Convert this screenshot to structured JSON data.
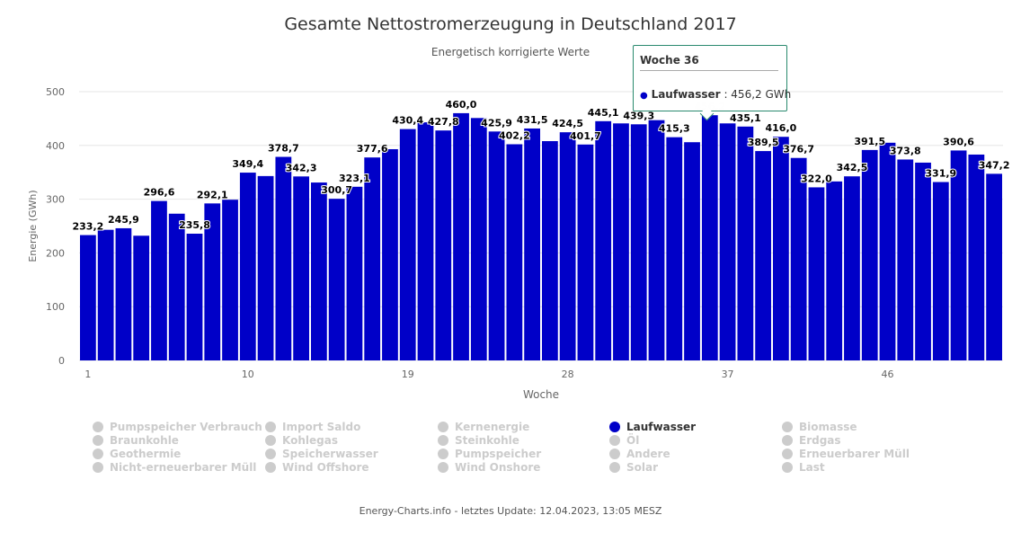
{
  "chart_data": {
    "type": "bar",
    "title": "Gesamte Nettostromerzeugung in Deutschland 2017",
    "subtitle": "Energetisch korrigierte Werte",
    "xlabel": "Woche",
    "ylabel": "Energie (GWh)",
    "ylim": [
      0,
      500
    ],
    "yticks": [
      "0",
      "100",
      "200",
      "300",
      "400",
      "500"
    ],
    "xticks": [
      1,
      10,
      19,
      28,
      37,
      46
    ],
    "grid": true,
    "bar_color": "#0000c8",
    "series": [
      {
        "name": "Laufwasser",
        "values": [
          233.2,
          243,
          245.9,
          232,
          296.6,
          273,
          235.8,
          292.1,
          299,
          349.4,
          343,
          378.7,
          342.3,
          331,
          300.7,
          323.1,
          377.6,
          393,
          430.4,
          443,
          427.8,
          460.0,
          451,
          425.9,
          402.2,
          431.5,
          408,
          424.5,
          401.7,
          445.1,
          441,
          439.3,
          447,
          415.3,
          406,
          456.2,
          441,
          435.1,
          389.5,
          416.0,
          376.7,
          322.0,
          333,
          342.5,
          391.5,
          405,
          373.8,
          368,
          331.9,
          390.6,
          383,
          347.2
        ],
        "labels": [
          "233,2",
          null,
          "245,9",
          null,
          "296,6",
          null,
          "235,8",
          "292,1",
          null,
          "349,4",
          null,
          "378,7",
          "342,3",
          null,
          "300,7",
          "323,1",
          "377,6",
          null,
          "430,4",
          null,
          "427,8",
          "460,0",
          null,
          "425,9",
          "402,2",
          "431,5",
          null,
          "424,5",
          "401,7",
          "445,1",
          null,
          "439,3",
          null,
          "415,3",
          null,
          "456,2",
          null,
          "435,1",
          "389,5",
          "416,0",
          "376,7",
          "322,0",
          null,
          "342,5",
          "391,5",
          null,
          "373,8",
          null,
          "331,9",
          "390,6",
          null,
          "347,2"
        ]
      }
    ]
  },
  "tooltip": {
    "header": "Woche 36",
    "series": "Laufwasser",
    "value": ": 456,2 GWh",
    "week": 36
  },
  "legend": [
    "Pumpspeicher Verbrauch",
    "Braunkohle",
    "Geothermie",
    "Nicht-erneuerbarer Müll",
    "Import Saldo",
    "Kohlegas",
    "Speicherwasser",
    "Wind Offshore",
    "Kernenergie",
    "Steinkohle",
    "Pumpspeicher",
    "Wind Onshore",
    "Laufwasser",
    "Öl",
    "Andere",
    "Solar",
    "Biomasse",
    "Erdgas",
    "Erneuerbarer Müll",
    "Last"
  ],
  "legend_active": "Laufwasser",
  "footer": "Energy-Charts.info - letztes Update: 12.04.2023, 13:05 MESZ"
}
